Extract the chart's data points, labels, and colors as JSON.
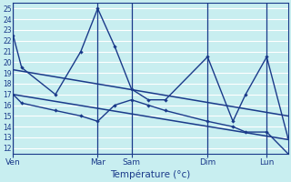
{
  "xlabel": "Température (°c)",
  "bg_color": "#c8eef0",
  "grid_color": "#ffffff",
  "line_color": "#1a3a8a",
  "ylim": [
    11.5,
    25.5
  ],
  "yticks": [
    12,
    13,
    14,
    15,
    16,
    17,
    18,
    19,
    20,
    21,
    22,
    23,
    24,
    25
  ],
  "day_labels": [
    "Ven",
    "Mar",
    "Sam",
    "Dim",
    "Lun"
  ],
  "day_tick_x": [
    0,
    40,
    56,
    92,
    120
  ],
  "x_min": 0,
  "x_max": 130,
  "max_temps_x": [
    0,
    4,
    20,
    32,
    40,
    48,
    56,
    64,
    72,
    92,
    104,
    110,
    120,
    130
  ],
  "max_temps_y": [
    22.5,
    19.5,
    17.0,
    21.0,
    25.0,
    21.5,
    17.5,
    16.5,
    16.5,
    20.5,
    14.5,
    17.0,
    20.5,
    13.0
  ],
  "min_temps_x": [
    0,
    4,
    20,
    32,
    40,
    48,
    56,
    64,
    72,
    92,
    104,
    110,
    120,
    130
  ],
  "min_temps_y": [
    17.0,
    16.2,
    15.5,
    15.0,
    14.5,
    16.0,
    16.5,
    16.0,
    15.5,
    14.5,
    14.0,
    13.5,
    13.5,
    11.5
  ],
  "trend1_x": [
    0,
    130
  ],
  "trend1_y": [
    19.3,
    15.0
  ],
  "trend2_x": [
    0,
    130
  ],
  "trend2_y": [
    17.0,
    12.8
  ]
}
